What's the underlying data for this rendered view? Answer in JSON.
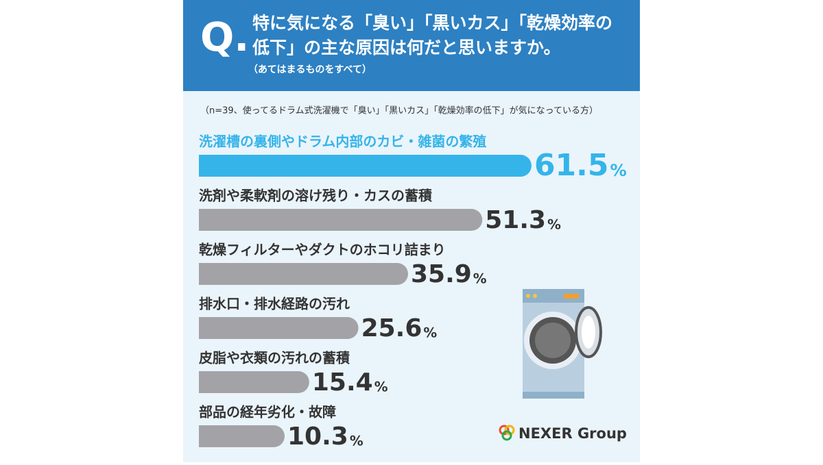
{
  "chart_data": {
    "type": "bar",
    "title_lines": [
      "特に気になる「臭い」「黒いカス」「乾燥効率の",
      "低下」の主な原因は何だと思いますか。"
    ],
    "q_mark": "Q.",
    "subtitle": "（あてはまるものをすべて）",
    "note": "（n=39、使ってるドラム式洗濯機で「臭い」「黒いカス」「乾燥効率の低下」が気になっている方）",
    "categories": [
      "洗濯槽の裏側やドラム内部のカビ・雑菌の繁殖",
      "洗剤や柔軟剤の溶け残り・カスの蓄積",
      "乾燥フィルターやダクトのホコリ詰まり",
      "排水口・排水経路の汚れ",
      "皮脂や衣類の汚れの蓄積",
      "部品の経年劣化・故障"
    ],
    "values": [
      61.5,
      51.3,
      35.9,
      25.6,
      15.4,
      10.3
    ],
    "value_unit": "%",
    "colors": [
      "#35b4ea",
      "#a3a3a7",
      "#a3a3a7",
      "#a3a3a7",
      "#a3a3a7",
      "#a3a3a7"
    ],
    "logo": "NEXER Group"
  }
}
